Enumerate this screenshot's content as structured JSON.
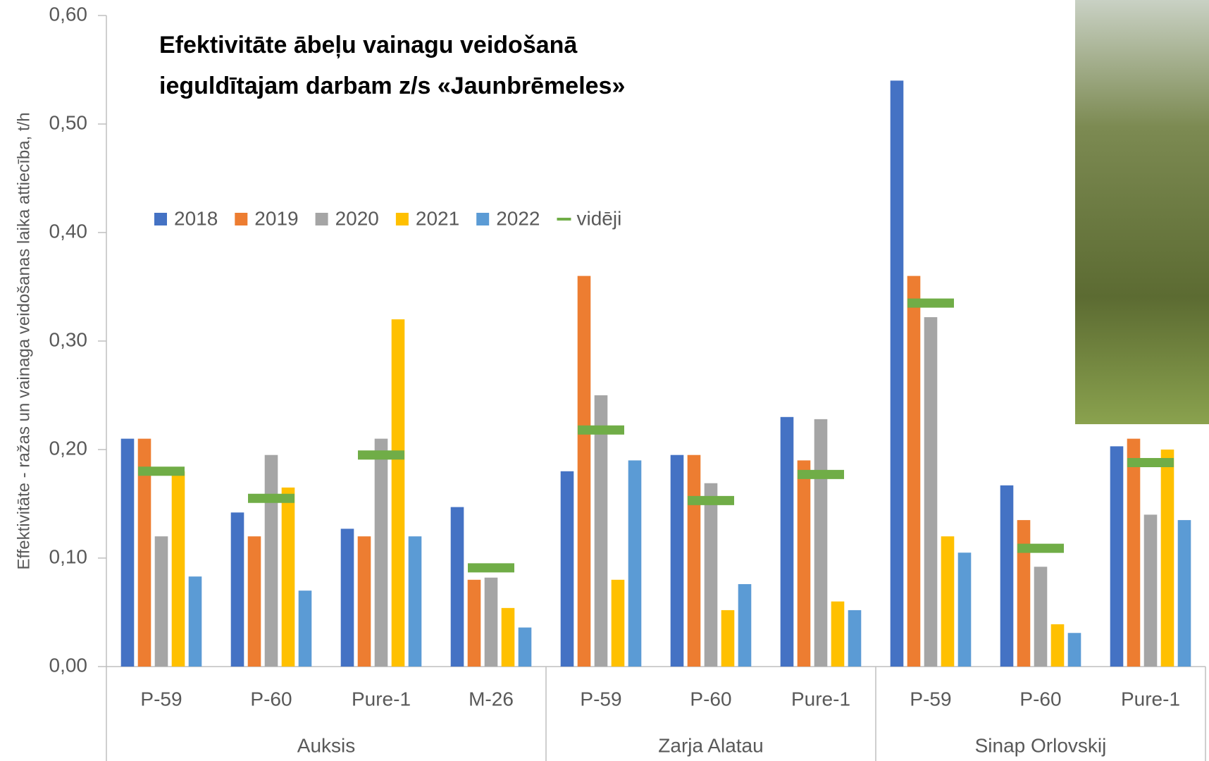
{
  "chart_data": {
    "type": "bar",
    "title": [
      "Efektivitāte ābeļu vainagu veidošanā",
      "ieguldītajam darbam z/s «Jaunbrēmeles»"
    ],
    "y_label": "Effektivitāte - ražas un vainaga veidošanas laika attiecība, t/h",
    "categories": [
      "P-59",
      "P-60",
      "Pure-1",
      "M-26",
      "P-59",
      "P-60",
      "Pure-1",
      "P-59",
      "P-60",
      "Pure-1"
    ],
    "groups": [
      {
        "name": "Auksis",
        "size": 4
      },
      {
        "name": "Zarja Alatau",
        "size": 3
      },
      {
        "name": "Sinap Orlovskij",
        "size": 3
      }
    ],
    "series": [
      {
        "name": "2018",
        "color": "#4472c4",
        "style": "bar",
        "values": [
          0.21,
          0.142,
          0.127,
          0.147,
          0.18,
          0.195,
          0.23,
          0.54,
          0.167,
          0.203
        ]
      },
      {
        "name": "2019",
        "color": "#ed7d31",
        "style": "bar",
        "values": [
          0.21,
          0.12,
          0.12,
          0.08,
          0.36,
          0.195,
          0.19,
          0.36,
          0.135,
          0.21
        ]
      },
      {
        "name": "2020",
        "color": "#a5a5a5",
        "style": "bar",
        "values": [
          0.12,
          0.195,
          0.21,
          0.082,
          0.25,
          0.169,
          0.228,
          0.322,
          0.092,
          0.14
        ]
      },
      {
        "name": "2021",
        "color": "#ffc000",
        "style": "bar",
        "values": [
          0.18,
          0.165,
          0.32,
          0.054,
          0.08,
          0.052,
          0.06,
          0.12,
          0.039,
          0.2
        ]
      },
      {
        "name": "2022",
        "color": "#5b9bd5",
        "style": "bar",
        "values": [
          0.083,
          0.07,
          0.12,
          0.036,
          0.19,
          0.076,
          0.052,
          0.105,
          0.031,
          0.135
        ]
      },
      {
        "name": "vidēji",
        "color": "#70ad47",
        "style": "dash",
        "values": [
          0.18,
          0.155,
          0.195,
          0.091,
          0.218,
          0.153,
          0.177,
          0.335,
          0.109,
          0.188
        ]
      }
    ],
    "ylim": [
      0,
      0.6
    ],
    "yticks": [
      {
        "value": 0,
        "label": "0,00"
      },
      {
        "value": 0.1,
        "label": "0,10"
      },
      {
        "value": 0.2,
        "label": "0,20"
      },
      {
        "value": 0.3,
        "label": "0,30"
      },
      {
        "value": 0.4,
        "label": "0,40"
      },
      {
        "value": 0.5,
        "label": "0,50"
      },
      {
        "value": 0.6,
        "label": "0,60"
      }
    ],
    "grid": false
  }
}
